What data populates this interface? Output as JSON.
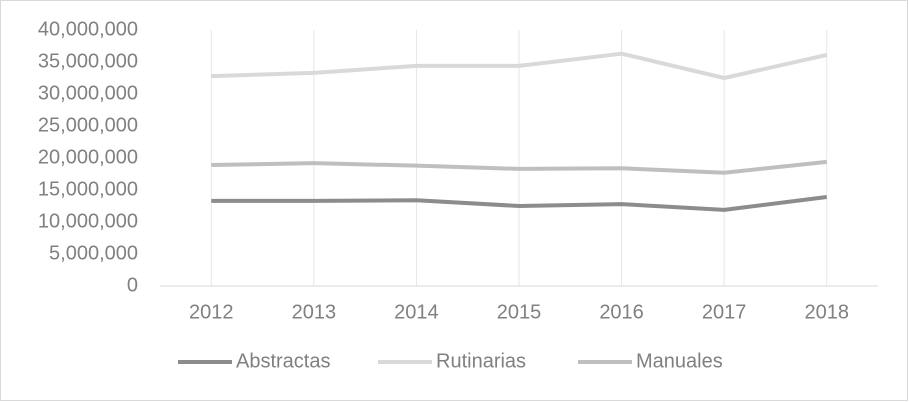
{
  "chart_data": {
    "type": "line",
    "categories": [
      "2012",
      "2013",
      "2014",
      "2015",
      "2016",
      "2017",
      "2018"
    ],
    "series": [
      {
        "name": "Abstractas",
        "color": "#8c8c8c",
        "values": [
          13300000,
          13300000,
          13400000,
          12500000,
          12800000,
          11900000,
          13900000
        ]
      },
      {
        "name": "Rutinarias",
        "color": "#d9d9d9",
        "values": [
          32800000,
          33300000,
          34400000,
          34400000,
          36300000,
          32500000,
          36100000
        ]
      },
      {
        "name": "Manuales",
        "color": "#bfbfbf",
        "values": [
          18900000,
          19200000,
          18800000,
          18300000,
          18400000,
          17700000,
          19400000
        ]
      }
    ],
    "ylim": [
      0,
      40000000
    ],
    "yticks": [
      0,
      {
        "value": 5000000,
        "label": "5,000,000"
      },
      {
        "value": 10000000,
        "label": "10,000,000"
      },
      {
        "value": 15000000,
        "label": "15,000,000"
      },
      {
        "value": 20000000,
        "label": "20,000,000"
      },
      {
        "value": 25000000,
        "label": "25,000,000"
      },
      {
        "value": 30000000,
        "label": "30,000,000"
      },
      {
        "value": 35000000,
        "label": "35,000,000"
      },
      {
        "value": 40000000,
        "label": "40,000,000"
      }
    ],
    "grid": false,
    "category_grid": true,
    "legend": "bottom"
  }
}
